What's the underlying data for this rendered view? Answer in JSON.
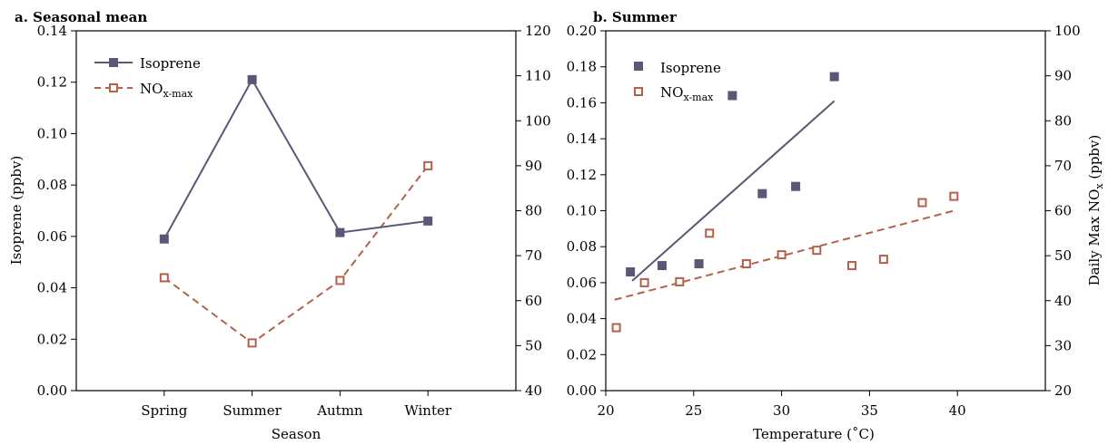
{
  "colors": {
    "isoprene": "#5a5875",
    "nox": "#b5604a"
  },
  "chart_data": [
    {
      "panel_title": "a. Seasonal mean",
      "type": "line",
      "categories": [
        "Spring",
        "Summer",
        "Autmn",
        "Winter"
      ],
      "xlabel": "Season",
      "ylabel": "Isoprene (ppbv)",
      "ylim": [
        0,
        0.14
      ],
      "yticks": [
        "0.00",
        "0.02",
        "0.04",
        "0.06",
        "0.08",
        "0.10",
        "0.12",
        "0.14"
      ],
      "y2lim": [
        40,
        120
      ],
      "y2ticks": [
        "40",
        "50",
        "60",
        "70",
        "80",
        "90",
        "100",
        "110",
        "120"
      ],
      "legend": {
        "isoprene": "Isoprene",
        "nox_base": "NO",
        "nox_sub": "x-max"
      },
      "series": [
        {
          "name": "Isoprene",
          "axis": "left",
          "values": [
            0.059,
            0.121,
            0.0615,
            0.066
          ]
        },
        {
          "name": "NOx-max",
          "axis": "right",
          "values": [
            65.1,
            50.6,
            64.5,
            90.0
          ]
        }
      ]
    },
    {
      "panel_title": "b. Summer",
      "type": "scatter",
      "xlabel": "Temperature (˚C)",
      "xlim": [
        20,
        45
      ],
      "xticks": [
        "20",
        "25",
        "30",
        "35",
        "40"
      ],
      "ylim": [
        0,
        0.2
      ],
      "yticks": [
        "0.00",
        "0.02",
        "0.04",
        "0.06",
        "0.08",
        "0.10",
        "0.12",
        "0.14",
        "0.16",
        "0.18",
        "0.20"
      ],
      "y2label_base": "Daily Max NO",
      "y2label_sub": "x",
      "y2label_tail": " (ppbv)",
      "y2lim": [
        20,
        100
      ],
      "y2ticks": [
        "20",
        "30",
        "40",
        "50",
        "60",
        "70",
        "80",
        "90",
        "100"
      ],
      "legend": {
        "isoprene": "Isoprene",
        "nox_base": "NO",
        "nox_sub": "x-max"
      },
      "series": [
        {
          "name": "Isoprene",
          "axis": "left",
          "x": [
            21.4,
            23.2,
            25.3,
            27.2,
            28.9,
            30.8,
            33.0
          ],
          "y": [
            0.066,
            0.0695,
            0.0705,
            0.164,
            0.1095,
            0.1135,
            0.1745
          ],
          "fit": {
            "x": [
              21.5,
              33.0
            ],
            "y": [
              0.061,
              0.161
            ]
          }
        },
        {
          "name": "NOx-max",
          "axis": "right",
          "x": [
            20.6,
            22.2,
            24.2,
            25.9,
            28.0,
            30.0,
            32.0,
            34.0,
            35.8,
            38.0,
            39.8
          ],
          "y": [
            34.0,
            44.0,
            44.2,
            55.0,
            48.2,
            50.2,
            51.2,
            47.8,
            49.2,
            61.8,
            63.2
          ],
          "fit": {
            "x": [
              20.5,
              39.8
            ],
            "y": [
              40.2,
              60.0
            ]
          }
        }
      ]
    }
  ]
}
